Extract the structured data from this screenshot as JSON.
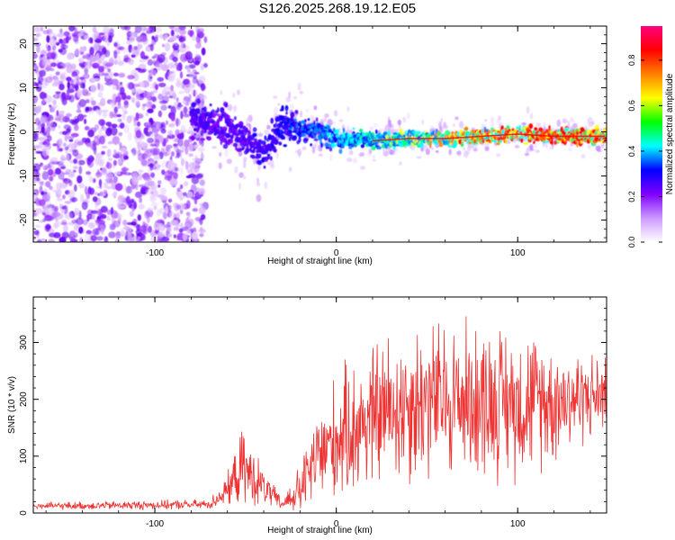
{
  "title": "S126.2025.268.19.12.E05",
  "chart_data": [
    {
      "type": "heatmap",
      "title": "S126.2025.268.19.12.E05",
      "xlabel": "Height of straight line (km)",
      "ylabel": "Frequency (Hz)",
      "xlim": [
        -167,
        149
      ],
      "ylim": [
        -25,
        24
      ],
      "xticks": [
        -100,
        0,
        100
      ],
      "yticks": [
        -20,
        -10,
        0,
        10,
        20
      ],
      "colorbar": {
        "label": "Normalized spectral amplitude",
        "range": [
          0,
          0.95
        ],
        "ticks": [
          "0.0",
          "0.2",
          "0.4",
          "0.6",
          "0.8"
        ],
        "colors": [
          "#ffffff",
          "#cc99ff",
          "#8000ff",
          "#0000ff",
          "#00ffff",
          "#00ff00",
          "#ffff00",
          "#ff8000",
          "#ff0000",
          "#ff0080"
        ]
      },
      "ridge": {
        "description": "dominant frequency ridge",
        "x": [
          -78,
          -60,
          -45,
          -40,
          -30,
          -20,
          -10,
          0,
          20,
          40,
          60,
          80,
          100,
          120,
          149
        ],
        "y": [
          3,
          1,
          -3,
          -5,
          2,
          1,
          0,
          -1.5,
          -2,
          -1.5,
          -1.5,
          -1,
          -0.5,
          -1,
          -1
        ]
      }
    },
    {
      "type": "line",
      "xlabel": "Height of straight line (km)",
      "ylabel": "SNR (10 * v/v)",
      "xlim": [
        -167,
        149
      ],
      "ylim": [
        0,
        380
      ],
      "xticks": [
        -100,
        0,
        100
      ],
      "yticks": [
        0,
        100,
        200,
        300
      ],
      "color": "#ee3333",
      "envelope": {
        "x": [
          -167,
          -70,
          -60,
          -52,
          -45,
          -40,
          -30,
          -20,
          -10,
          0,
          20,
          40,
          60,
          80,
          100,
          120,
          140,
          149
        ],
        "mean": [
          12,
          15,
          40,
          80,
          60,
          45,
          15,
          40,
          100,
          130,
          170,
          195,
          200,
          200,
          195,
          200,
          205,
          210
        ],
        "spread": [
          6,
          8,
          25,
          60,
          45,
          30,
          10,
          40,
          80,
          100,
          120,
          130,
          130,
          125,
          120,
          100,
          70,
          60
        ]
      }
    }
  ]
}
